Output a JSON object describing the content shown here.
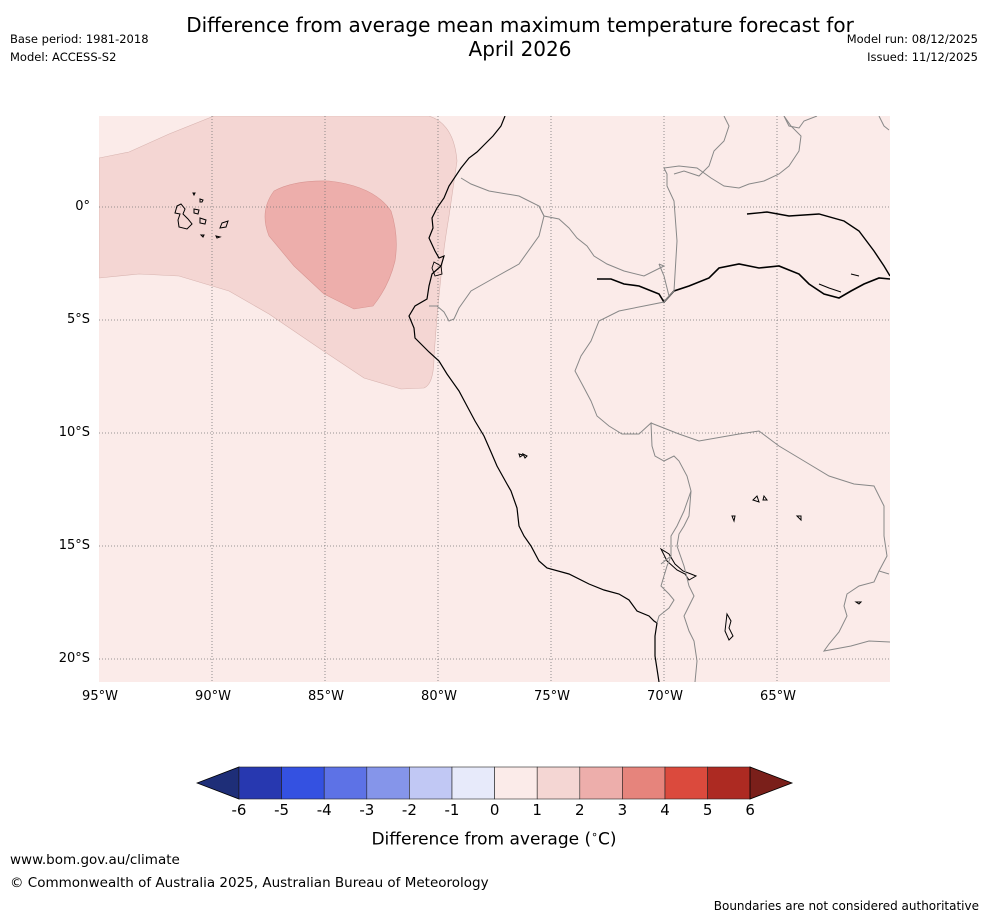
{
  "header": {
    "title_line1": "Difference from average mean maximum temperature forecast for",
    "title_line2": "April 2026",
    "base_period": "Base period: 1981-2018",
    "model": "Model: ACCESS-S2",
    "model_run": "Model run: 08/12/2025",
    "issued": "Issued: 11/12/2025"
  },
  "map": {
    "latitude_labels": [
      "0°",
      "5°S",
      "10°S",
      "15°S",
      "20°S"
    ],
    "longitude_labels": [
      "95°W",
      "90°W",
      "85°W",
      "80°W",
      "75°W",
      "70°W",
      "65°W"
    ],
    "anomaly_regions": [
      {
        "name": "background",
        "range_c": [
          0,
          1
        ],
        "color": "#fbebe9"
      },
      {
        "name": "galapagos-to-coast band",
        "range_c": [
          1,
          2
        ],
        "color": "#f4d6d3"
      },
      {
        "name": "offshore core",
        "range_c": [
          2,
          3
        ],
        "color": "#edaeab"
      }
    ]
  },
  "colorbar": {
    "label": "Difference from average (",
    "label_degree": "∘",
    "label_unit": "C)",
    "ticks": [
      "-6",
      "-5",
      "-4",
      "-3",
      "-2",
      "-1",
      "0",
      "1",
      "2",
      "3",
      "4",
      "5",
      "6"
    ],
    "low_extend_color": "#1e2e78",
    "high_extend_color": "#7a1f1a",
    "bins": [
      {
        "from": -6,
        "to": -5,
        "color": "#2738b0"
      },
      {
        "from": -5,
        "to": -4,
        "color": "#3451e1"
      },
      {
        "from": -4,
        "to": -3,
        "color": "#5d72e6"
      },
      {
        "from": -3,
        "to": -2,
        "color": "#8595ea"
      },
      {
        "from": -2,
        "to": -1,
        "color": "#c1c8f4"
      },
      {
        "from": -1,
        "to": 0,
        "color": "#e7eafa"
      },
      {
        "from": 0,
        "to": 1,
        "color": "#fbebe9"
      },
      {
        "from": 1,
        "to": 2,
        "color": "#f4d6d3"
      },
      {
        "from": 2,
        "to": 3,
        "color": "#edaeab"
      },
      {
        "from": 3,
        "to": 4,
        "color": "#e6847c"
      },
      {
        "from": 4,
        "to": 5,
        "color": "#db4a3d"
      },
      {
        "from": 5,
        "to": 6,
        "color": "#ad2a22"
      }
    ]
  },
  "footer": {
    "url": "www.bom.gov.au/climate",
    "copyright": "© Commonwealth of Australia 2025, Australian Bureau of Meteorology",
    "disclaimer": "Boundaries are not considered authoritative"
  }
}
